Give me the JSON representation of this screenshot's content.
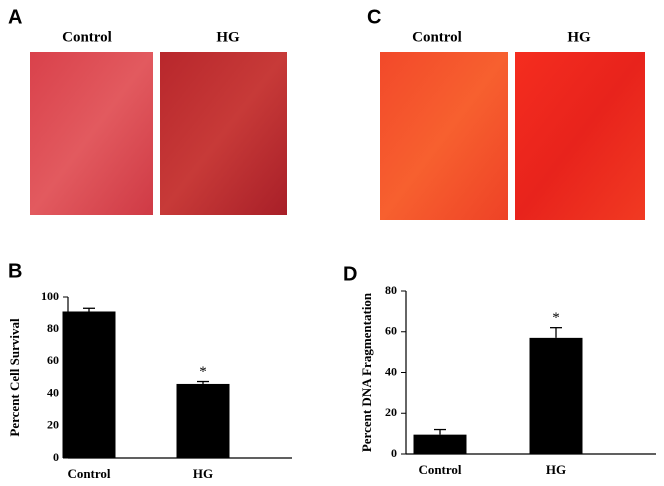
{
  "panels": [
    {
      "letter": "A",
      "images": [
        "Control",
        "HG"
      ]
    },
    {
      "letter": "C",
      "images": [
        "Control",
        "HG"
      ]
    }
  ],
  "chart_data": [
    {
      "type": "bar",
      "panel_label": "B",
      "ylabel": "Percent Cell Survival",
      "categories": [
        "Control",
        "HG"
      ],
      "values": [
        91,
        46
      ],
      "errors": [
        2,
        1.5
      ],
      "significance": [
        null,
        "*"
      ],
      "color": "#000000",
      "ylim": [
        0,
        100
      ],
      "yticks": [
        0,
        20,
        40,
        60,
        80,
        100
      ]
    },
    {
      "type": "bar",
      "panel_label": "D",
      "ylabel": "Percent DNA Fragmentation",
      "categories": [
        "Control",
        "HG"
      ],
      "values": [
        9.5,
        57
      ],
      "errors": [
        2.5,
        5
      ],
      "significance": [
        null,
        "*"
      ],
      "color": "#000000",
      "ylim": [
        0,
        80
      ],
      "yticks": [
        0,
        20,
        40,
        60,
        80
      ]
    }
  ]
}
